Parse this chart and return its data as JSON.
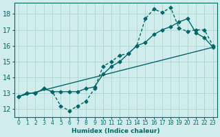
{
  "xlabel": "Humidex (Indice chaleur)",
  "ylabel": "",
  "bg_color": "#d0ecec",
  "line_color": "#006666",
  "grid_color": "#b0d8d8",
  "xlim": [
    -0.5,
    23.5
  ],
  "ylim": [
    11.5,
    18.7
  ],
  "xticks": [
    0,
    1,
    2,
    3,
    4,
    5,
    6,
    7,
    8,
    9,
    10,
    11,
    12,
    13,
    14,
    15,
    16,
    17,
    18,
    19,
    20,
    21,
    22,
    23
  ],
  "yticks": [
    12,
    13,
    14,
    15,
    16,
    17,
    18
  ],
  "line1_x": [
    0,
    1,
    2,
    3,
    4,
    5,
    6,
    7,
    8,
    9,
    10,
    11,
    12,
    13,
    14,
    15,
    16,
    17,
    18,
    19,
    20,
    21,
    22,
    23
  ],
  "line1_y": [
    12.8,
    13.0,
    13.0,
    13.3,
    13.1,
    12.2,
    11.9,
    12.2,
    12.5,
    13.3,
    14.7,
    15.0,
    15.4,
    15.5,
    16.0,
    17.7,
    18.3,
    18.1,
    18.4,
    17.1,
    16.9,
    17.0,
    17.0,
    16.0
  ],
  "line2_x": [
    0,
    1,
    2,
    3,
    4,
    5,
    6,
    7,
    8,
    9,
    10,
    11,
    12,
    13,
    14,
    15,
    16,
    17,
    18,
    19,
    20,
    21,
    22,
    23
  ],
  "line2_y": [
    12.8,
    13.0,
    13.0,
    13.3,
    13.1,
    13.1,
    13.1,
    13.1,
    13.3,
    13.4,
    14.2,
    14.7,
    15.0,
    15.5,
    16.0,
    16.2,
    16.7,
    17.0,
    17.2,
    17.5,
    17.7,
    16.8,
    16.5,
    15.9
  ],
  "line3_x": [
    0,
    23
  ],
  "line3_y": [
    12.8,
    15.9
  ]
}
